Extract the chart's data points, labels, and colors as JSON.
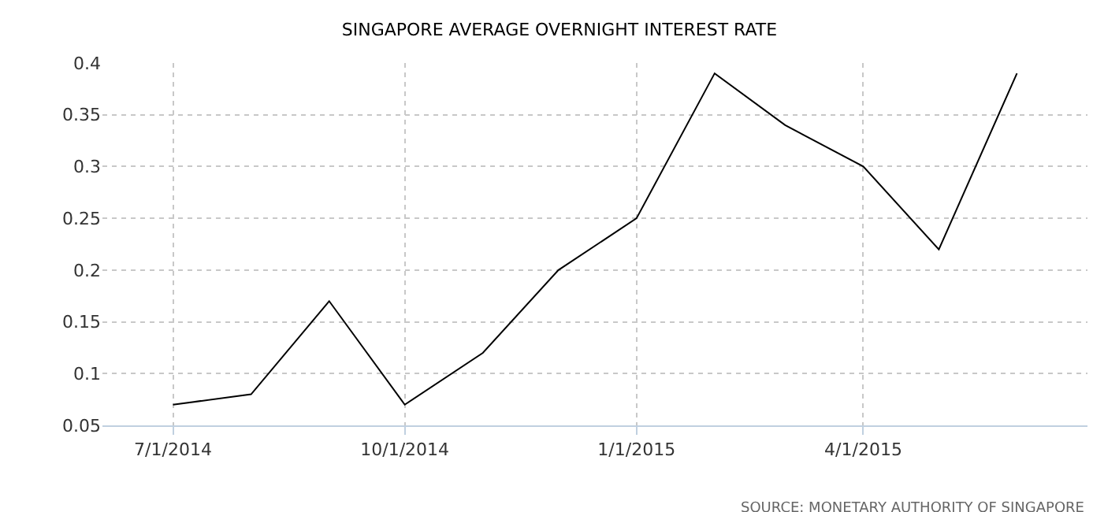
{
  "chart_data": {
    "type": "line",
    "title": "SINGAPORE AVERAGE OVERNIGHT INTEREST RATE",
    "x": [
      "2014-07-01",
      "2014-08-01",
      "2014-09-01",
      "2014-10-01",
      "2014-11-01",
      "2014-12-01",
      "2015-01-01",
      "2015-02-01",
      "2015-03-01",
      "2015-04-01",
      "2015-05-01",
      "2015-06-01"
    ],
    "series": [
      {
        "color": "#000000",
        "values": [
          0.07,
          0.08,
          0.17,
          0.07,
          0.12,
          0.2,
          0.25,
          0.39,
          0.34,
          0.3,
          0.22,
          0.39
        ]
      }
    ],
    "xlim": [
      "2014-06-03",
      "2015-06-29"
    ],
    "xticks": [
      {
        "value": "2014-07-01",
        "label": "7/1/2014"
      },
      {
        "value": "2014-10-01",
        "label": "10/1/2014"
      },
      {
        "value": "2015-01-01",
        "label": "1/1/2015"
      },
      {
        "value": "2015-04-01",
        "label": "4/1/2015"
      }
    ],
    "ylim": [
      0.05,
      0.4
    ],
    "yticks": [
      0.05,
      0.1,
      0.15,
      0.2,
      0.25,
      0.3,
      0.35,
      0.4
    ],
    "grid": true,
    "legend": false,
    "marker": "none",
    "line_style": "solid",
    "annotations": [
      "SOURCE: MONETARY AUTHORITY OF SINGAPORE"
    ]
  }
}
